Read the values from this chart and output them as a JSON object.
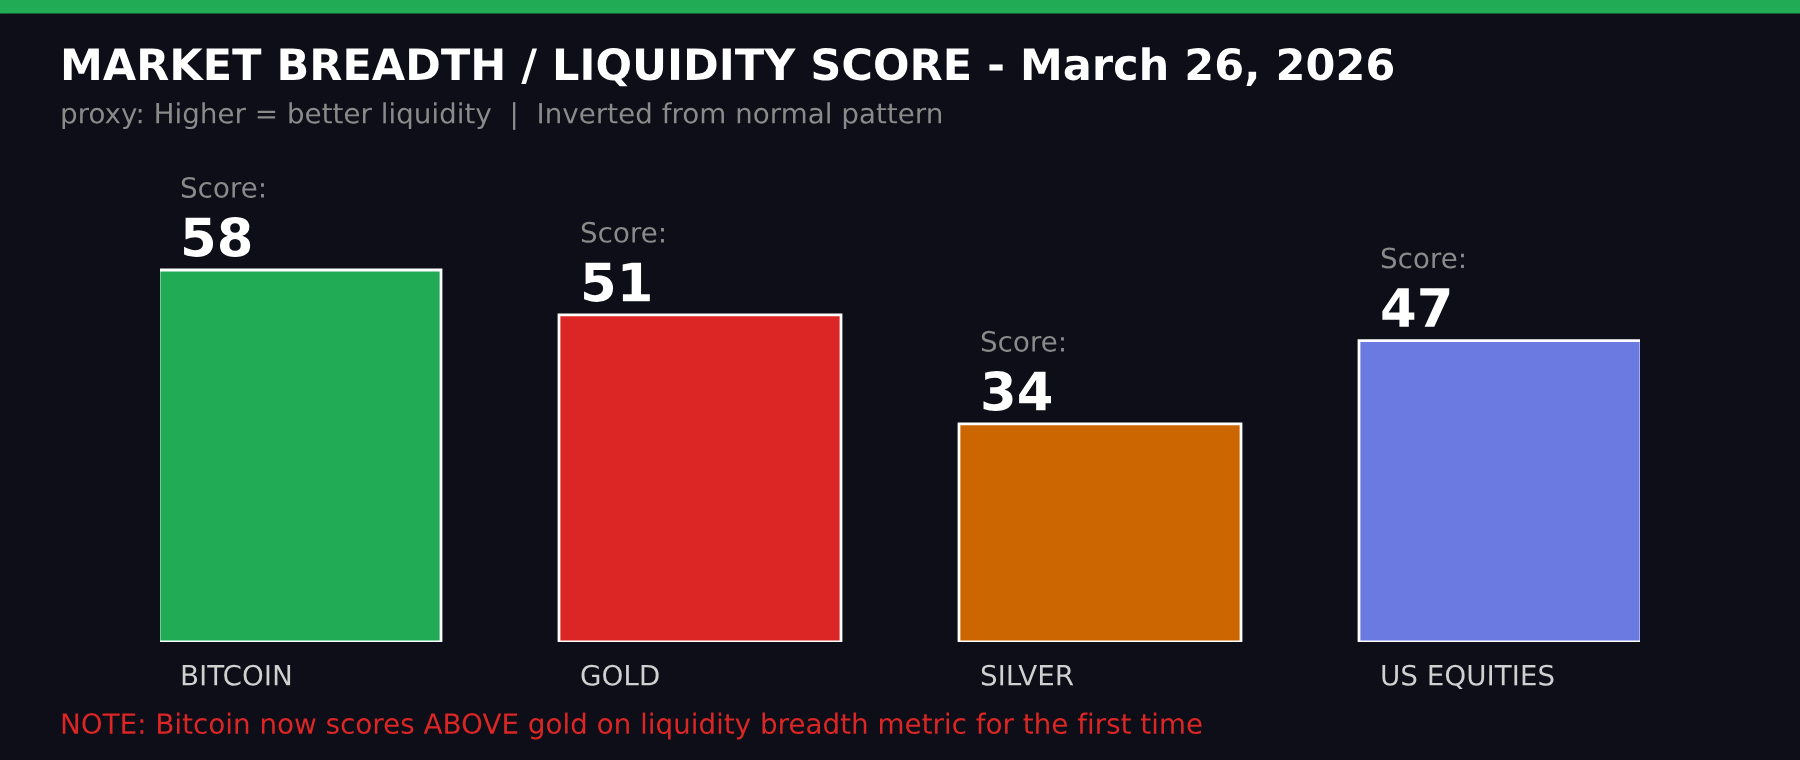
{
  "chart_data": {
    "type": "bar",
    "title": "MARKET BREADTH / LIQUIDITY SCORE - March 26, 2026",
    "subtitle": "proxy: Higher = better liquidity  |  Inverted from normal pattern",
    "categories": [
      "BITCOIN",
      "GOLD",
      "SILVER",
      "US EQUITIES"
    ],
    "values": [
      58,
      51,
      34,
      47
    ],
    "colors": [
      "#22ab55",
      "#dc2626",
      "#cc6600",
      "#6b7ae0"
    ],
    "data_labels": true,
    "annotations": [
      {
        "text": "Score:",
        "x": "BITCOIN",
        "y": 58
      },
      {
        "text": "Score:",
        "x": "GOLD",
        "y": 51
      },
      {
        "text": "Score:",
        "x": "SILVER",
        "y": 34
      },
      {
        "text": "Score:",
        "x": "US EQUITIES",
        "y": 47
      },
      "NOTE: Bitcoin now scores ABOVE gold on liquidity breadth metric for the first time"
    ],
    "grid": false,
    "legend": false
  }
}
